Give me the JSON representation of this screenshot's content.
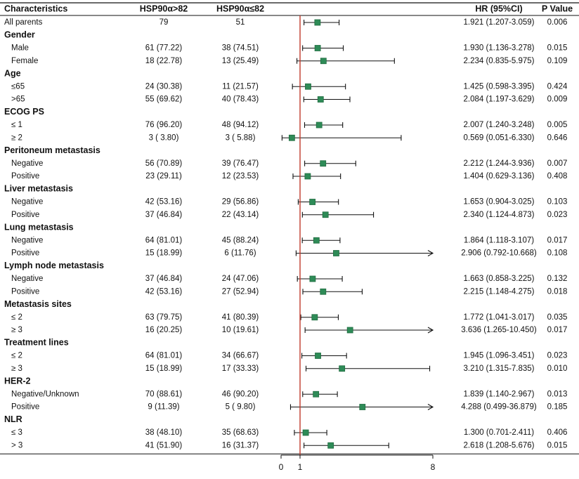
{
  "chart_data": {
    "type": "forest",
    "headers": {
      "characteristics": "Characteristics",
      "group_high": "HSP90α>82",
      "group_low": "HSP90α≤82",
      "hr": "HR (95%CI)",
      "p": "P Value"
    },
    "reference_line": 1,
    "x_ticks": [
      {
        "value": 0,
        "label": "0"
      },
      {
        "value": 1,
        "label": "1"
      },
      {
        "value": 8,
        "label": "8"
      }
    ],
    "colors": {
      "marker": "#2e8b57",
      "marker_edge": "#1f6b3f",
      "reference": "#c0392b",
      "line": "#111111"
    },
    "rows": [
      {
        "kind": "item",
        "label": "All parents",
        "indent": false,
        "high": "79",
        "low": "51",
        "hr": 1.921,
        "lo": 1.207,
        "hi": 3.059,
        "hr_text": "1.921 (1.207-3.059)",
        "p": "0.006"
      },
      {
        "kind": "group",
        "label": "Gender"
      },
      {
        "kind": "item",
        "label": "Male",
        "indent": true,
        "high": "61 (77.22)",
        "low": "38 (74.51)",
        "hr": 1.93,
        "lo": 1.136,
        "hi": 3.278,
        "hr_text": "1.930 (1.136-3.278)",
        "p": "0.015"
      },
      {
        "kind": "item",
        "label": "Female",
        "indent": true,
        "high": "18 (22.78)",
        "low": "13 (25.49)",
        "hr": 2.234,
        "lo": 0.835,
        "hi": 5.975,
        "hr_text": "2.234 (0.835-5.975)",
        "p": "0.109"
      },
      {
        "kind": "group",
        "label": "Age"
      },
      {
        "kind": "item",
        "label": "≤65",
        "indent": true,
        "high": "24 (30.38)",
        "low": "11 (21.57)",
        "hr": 1.425,
        "lo": 0.598,
        "hi": 3.395,
        "hr_text": "1.425 (0.598-3.395)",
        "p": "0.424"
      },
      {
        "kind": "item",
        "label": ">65",
        "indent": true,
        "high": "55 (69.62)",
        "low": "40 (78.43)",
        "hr": 2.084,
        "lo": 1.197,
        "hi": 3.629,
        "hr_text": "2.084 (1.197-3.629)",
        "p": "0.009"
      },
      {
        "kind": "group",
        "label": "ECOG PS"
      },
      {
        "kind": "item",
        "label": "≤ 1",
        "indent": true,
        "high": "76 (96.20)",
        "low": "48 (94.12)",
        "hr": 2.007,
        "lo": 1.24,
        "hi": 3.248,
        "hr_text": "2.007 (1.240-3.248)",
        "p": "0.005"
      },
      {
        "kind": "item",
        "label": "≥ 2",
        "indent": true,
        "high": "3 ( 3.80)",
        "low": "3 ( 5.88)",
        "hr": 0.569,
        "lo": 0.051,
        "hi": 6.33,
        "hr_text": "0.569 (0.051-6.330)",
        "p": "0.646"
      },
      {
        "kind": "group",
        "label": "Peritoneum metastasis"
      },
      {
        "kind": "item",
        "label": "Negative",
        "indent": true,
        "high": "56 (70.89)",
        "low": "39 (76.47)",
        "hr": 2.212,
        "lo": 1.244,
        "hi": 3.936,
        "hr_text": "2.212 (1.244-3.936)",
        "p": "0.007"
      },
      {
        "kind": "item",
        "label": "Positive",
        "indent": true,
        "high": "23 (29.11)",
        "low": "12 (23.53)",
        "hr": 1.404,
        "lo": 0.629,
        "hi": 3.136,
        "hr_text": "1.404 (0.629-3.136)",
        "p": "0.408"
      },
      {
        "kind": "group",
        "label": "Liver metastasis"
      },
      {
        "kind": "item",
        "label": "Negative",
        "indent": true,
        "high": "42 (53.16)",
        "low": "29 (56.86)",
        "hr": 1.653,
        "lo": 0.904,
        "hi": 3.025,
        "hr_text": "1.653 (0.904-3.025)",
        "p": "0.103"
      },
      {
        "kind": "item",
        "label": "Positive",
        "indent": true,
        "high": "37 (46.84)",
        "low": "22 (43.14)",
        "hr": 2.34,
        "lo": 1.124,
        "hi": 4.873,
        "hr_text": "2.340 (1.124-4.873)",
        "p": "0.023"
      },
      {
        "kind": "group",
        "label": "Lung metastasis"
      },
      {
        "kind": "item",
        "label": "Negative",
        "indent": true,
        "high": "64 (81.01)",
        "low": "45 (88.24)",
        "hr": 1.864,
        "lo": 1.118,
        "hi": 3.107,
        "hr_text": "1.864 (1.118-3.107)",
        "p": "0.017"
      },
      {
        "kind": "item",
        "label": "Positive",
        "indent": true,
        "high": "15 (18.99)",
        "low": "6 (11.76)",
        "hr": 2.906,
        "lo": 0.792,
        "hi": 10.668,
        "hr_text": "2.906 (0.792-10.668)",
        "p": "0.108"
      },
      {
        "kind": "group",
        "label": "Lymph node metastasis"
      },
      {
        "kind": "item",
        "label": "Negative",
        "indent": true,
        "high": "37 (46.84)",
        "low": "24 (47.06)",
        "hr": 1.663,
        "lo": 0.858,
        "hi": 3.225,
        "hr_text": "1.663 (0.858-3.225)",
        "p": "0.132"
      },
      {
        "kind": "item",
        "label": "Positive",
        "indent": true,
        "high": "42 (53.16)",
        "low": "27 (52.94)",
        "hr": 2.215,
        "lo": 1.148,
        "hi": 4.275,
        "hr_text": "2.215 (1.148-4.275)",
        "p": "0.018"
      },
      {
        "kind": "group",
        "label": "Metastasis sites"
      },
      {
        "kind": "item",
        "label": "≤ 2",
        "indent": true,
        "high": "63 (79.75)",
        "low": "41 (80.39)",
        "hr": 1.772,
        "lo": 1.041,
        "hi": 3.017,
        "hr_text": "1.772 (1.041-3.017)",
        "p": "0.035"
      },
      {
        "kind": "item",
        "label": "≥ 3",
        "indent": true,
        "high": "16 (20.25)",
        "low": "10 (19.61)",
        "hr": 3.636,
        "lo": 1.265,
        "hi": 10.45,
        "hr_text": "3.636 (1.265-10.450)",
        "p": "0.017"
      },
      {
        "kind": "group",
        "label": "Treatment lines"
      },
      {
        "kind": "item",
        "label": "≤ 2",
        "indent": true,
        "high": "64 (81.01)",
        "low": "34 (66.67)",
        "hr": 1.945,
        "lo": 1.096,
        "hi": 3.451,
        "hr_text": "1.945 (1.096-3.451)",
        "p": "0.023"
      },
      {
        "kind": "item",
        "label": "≥ 3",
        "indent": true,
        "high": "15 (18.99)",
        "low": "17 (33.33)",
        "hr": 3.21,
        "lo": 1.315,
        "hi": 7.835,
        "hr_text": "3.210 (1.315-7.835)",
        "p": "0.010"
      },
      {
        "kind": "group",
        "label": "HER-2"
      },
      {
        "kind": "item",
        "label": "Negative/Unknown",
        "indent": true,
        "high": "70 (88.61)",
        "low": "46 (90.20)",
        "hr": 1.839,
        "lo": 1.14,
        "hi": 2.967,
        "hr_text": "1.839 (1.140-2.967)",
        "p": "0.013"
      },
      {
        "kind": "item",
        "label": "Positive",
        "indent": true,
        "high": "9 (11.39)",
        "low": "5 ( 9.80)",
        "hr": 4.288,
        "lo": 0.499,
        "hi": 36.879,
        "hr_text": "4.288 (0.499-36.879)",
        "p": "0.185"
      },
      {
        "kind": "group",
        "label": "NLR"
      },
      {
        "kind": "item",
        "label": "≤ 3",
        "indent": true,
        "high": "38 (48.10)",
        "low": "35 (68.63)",
        "hr": 1.3,
        "lo": 0.701,
        "hi": 2.411,
        "hr_text": "1.300 (0.701-2.411)",
        "p": "0.406"
      },
      {
        "kind": "item",
        "label": "> 3",
        "indent": true,
        "high": "41 (51.90)",
        "low": "16 (31.37)",
        "hr": 2.618,
        "lo": 1.208,
        "hi": 5.676,
        "hr_text": "2.618 (1.208-5.676)",
        "p": "0.015"
      }
    ]
  }
}
